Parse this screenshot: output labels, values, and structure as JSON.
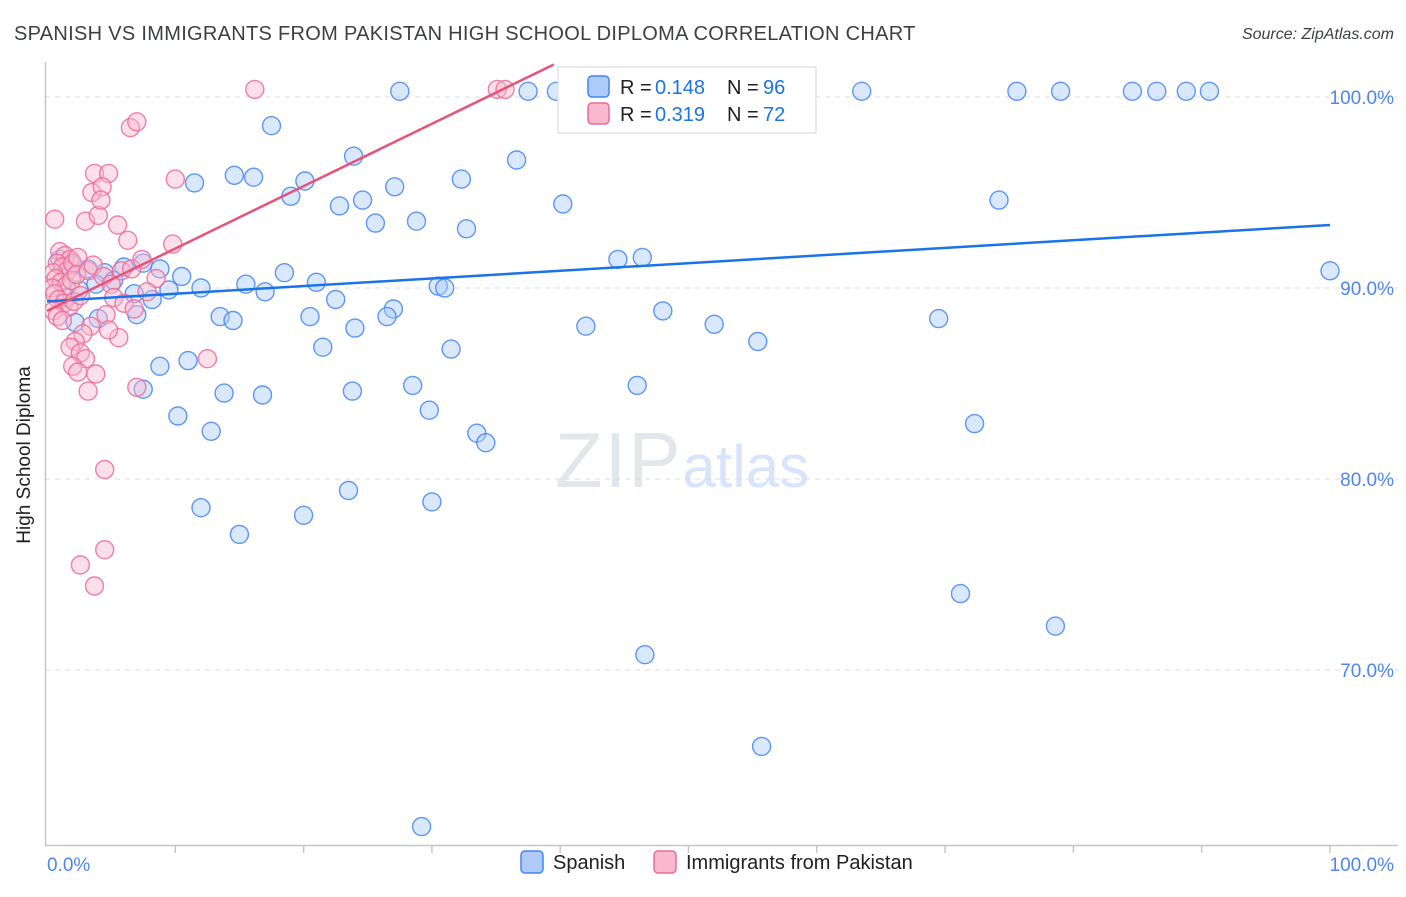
{
  "header": {
    "title": "SPANISH VS IMMIGRANTS FROM PAKISTAN HIGH SCHOOL DIPLOMA CORRELATION CHART",
    "source": "Source: ZipAtlas.com"
  },
  "axes": {
    "y_label": "High School Diploma",
    "x_tick_left": "0.0%",
    "x_tick_right": "100.0%",
    "y_tick_labels": [
      "100.0%",
      "90.0%",
      "80.0%",
      "70.0%"
    ],
    "y_tick_values": [
      100,
      90,
      80,
      70
    ]
  },
  "legend_box": {
    "rows": [
      {
        "r_label": "R =",
        "r_value": "0.148",
        "n_label": "N =",
        "n_value": "96"
      },
      {
        "r_label": "R =",
        "r_value": "0.319",
        "n_label": "N =",
        "n_value": "72"
      }
    ]
  },
  "bottom_legend": {
    "items": [
      {
        "label": "Spanish"
      },
      {
        "label": "Immigrants from Pakistan"
      }
    ]
  },
  "watermark": {
    "zip": "ZIP",
    "atlas": "atlas"
  },
  "colors": {
    "blue_stroke": "#4285F4",
    "blue_fill": "#AECBFA",
    "pink_stroke": "#EC6B96",
    "pink_fill": "#F9B8CE",
    "blue_trend": "#1A73E8",
    "pink_trend": "#E8537A",
    "grid": "#d9dce1",
    "axis": "#c3c7cd"
  },
  "chart_data": {
    "type": "scatter",
    "title": "SPANISH VS IMMIGRANTS FROM PAKISTAN HIGH SCHOOL DIPLOMA CORRELATION CHART",
    "xlabel": "",
    "ylabel": "High School Diploma",
    "xlim": [
      0,
      105
    ],
    "ylim": [
      60.8,
      101.7
    ],
    "grid": "horizontal-dashed",
    "legend_position": "top-center",
    "series": [
      {
        "name": "Spanish",
        "R": 0.148,
        "N": 96,
        "points": [
          [
            27.5,
            100.3
          ],
          [
            37.5,
            100.3
          ],
          [
            39.7,
            100.3
          ],
          [
            51.9,
            100.3
          ],
          [
            52.6,
            100.3
          ],
          [
            56.1,
            100.3
          ],
          [
            63.5,
            100.3
          ],
          [
            75.6,
            100.3
          ],
          [
            79.0,
            100.3
          ],
          [
            84.6,
            100.3
          ],
          [
            86.5,
            100.3
          ],
          [
            88.8,
            100.3
          ],
          [
            90.6,
            100.3
          ],
          [
            17.5,
            98.5
          ],
          [
            23.9,
            96.9
          ],
          [
            36.6,
            96.7
          ],
          [
            11.5,
            95.5
          ],
          [
            14.6,
            95.9
          ],
          [
            16.1,
            95.8
          ],
          [
            32.3,
            95.7
          ],
          [
            20.1,
            95.6
          ],
          [
            19.0,
            94.8
          ],
          [
            24.6,
            94.6
          ],
          [
            22.8,
            94.3
          ],
          [
            27.1,
            95.3
          ],
          [
            40.2,
            94.4
          ],
          [
            74.2,
            94.6
          ],
          [
            46.4,
            91.6
          ],
          [
            25.6,
            93.4
          ],
          [
            28.8,
            93.5
          ],
          [
            32.7,
            93.1
          ],
          [
            100.0,
            90.9
          ],
          [
            1.0,
            91.5
          ],
          [
            2.0,
            91.2
          ],
          [
            3.2,
            91.0
          ],
          [
            4.5,
            90.8
          ],
          [
            6.0,
            91.1
          ],
          [
            7.5,
            91.3
          ],
          [
            8.8,
            91.0
          ],
          [
            5.2,
            90.4
          ],
          [
            3.8,
            90.2
          ],
          [
            2.5,
            89.9
          ],
          [
            1.5,
            89.5
          ],
          [
            6.8,
            89.7
          ],
          [
            8.2,
            89.4
          ],
          [
            9.5,
            89.9
          ],
          [
            10.5,
            90.6
          ],
          [
            12.0,
            90.0
          ],
          [
            7.0,
            88.6
          ],
          [
            4.0,
            88.4
          ],
          [
            2.2,
            88.2
          ],
          [
            13.5,
            88.5
          ],
          [
            14.5,
            88.3
          ],
          [
            17.0,
            89.8
          ],
          [
            18.5,
            90.8
          ],
          [
            15.5,
            90.2
          ],
          [
            21.0,
            90.3
          ],
          [
            22.5,
            89.4
          ],
          [
            27.0,
            88.9
          ],
          [
            30.5,
            90.1
          ],
          [
            24.0,
            87.9
          ],
          [
            26.5,
            88.5
          ],
          [
            20.5,
            88.5
          ],
          [
            31.5,
            86.8
          ],
          [
            21.5,
            86.9
          ],
          [
            8.8,
            85.9
          ],
          [
            11.0,
            86.2
          ],
          [
            13.8,
            84.5
          ],
          [
            7.5,
            84.7
          ],
          [
            10.2,
            83.3
          ],
          [
            12.8,
            82.5
          ],
          [
            16.8,
            84.4
          ],
          [
            28.5,
            84.9
          ],
          [
            23.8,
            84.6
          ],
          [
            33.5,
            82.4
          ],
          [
            34.2,
            81.9
          ],
          [
            29.8,
            83.6
          ],
          [
            42.0,
            88.0
          ],
          [
            44.5,
            91.5
          ],
          [
            48.0,
            88.8
          ],
          [
            52.0,
            88.1
          ],
          [
            55.4,
            87.2
          ],
          [
            46.0,
            84.9
          ],
          [
            31.0,
            90.0
          ],
          [
            23.5,
            79.4
          ],
          [
            20.0,
            78.1
          ],
          [
            30.0,
            78.8
          ],
          [
            15.0,
            77.1
          ],
          [
            12.0,
            78.5
          ],
          [
            69.5,
            88.4
          ],
          [
            72.3,
            82.9
          ],
          [
            71.2,
            74.0
          ],
          [
            78.6,
            72.3
          ],
          [
            46.6,
            70.8
          ],
          [
            55.7,
            66.0
          ],
          [
            29.2,
            61.8
          ]
        ]
      },
      {
        "name": "Immigrants from Pakistan",
        "R": 0.319,
        "N": 72,
        "points": [
          [
            16.2,
            100.4
          ],
          [
            35.1,
            100.4
          ],
          [
            35.7,
            100.4
          ],
          [
            6.5,
            98.4
          ],
          [
            7.0,
            98.7
          ],
          [
            3.7,
            96.0
          ],
          [
            4.8,
            96.0
          ],
          [
            10.0,
            95.7
          ],
          [
            3.5,
            95.0
          ],
          [
            4.3,
            95.3
          ],
          [
            0.6,
            93.6
          ],
          [
            3.0,
            93.5
          ],
          [
            4.0,
            93.8
          ],
          [
            5.5,
            93.3
          ],
          [
            6.3,
            92.5
          ],
          [
            1.0,
            91.9
          ],
          [
            1.4,
            91.7
          ],
          [
            1.8,
            91.5
          ],
          [
            0.8,
            91.3
          ],
          [
            1.2,
            91.1
          ],
          [
            1.6,
            90.9
          ],
          [
            2.0,
            91.3
          ],
          [
            2.4,
            91.6
          ],
          [
            0.5,
            90.8
          ],
          [
            0.7,
            90.5
          ],
          [
            1.1,
            90.3
          ],
          [
            1.5,
            90.1
          ],
          [
            1.9,
            90.4
          ],
          [
            2.3,
            90.7
          ],
          [
            0.4,
            90.0
          ],
          [
            0.6,
            89.7
          ],
          [
            0.9,
            89.4
          ],
          [
            1.3,
            89.2
          ],
          [
            1.7,
            89.0
          ],
          [
            2.1,
            89.3
          ],
          [
            0.5,
            88.8
          ],
          [
            0.8,
            88.5
          ],
          [
            1.2,
            88.3
          ],
          [
            2.6,
            89.6
          ],
          [
            3.2,
            90.9
          ],
          [
            3.6,
            91.2
          ],
          [
            4.4,
            90.6
          ],
          [
            5.0,
            90.2
          ],
          [
            5.8,
            90.9
          ],
          [
            6.6,
            91.0
          ],
          [
            7.4,
            91.5
          ],
          [
            5.2,
            89.5
          ],
          [
            6.0,
            89.2
          ],
          [
            6.8,
            88.9
          ],
          [
            4.6,
            88.6
          ],
          [
            3.4,
            88.0
          ],
          [
            2.8,
            87.6
          ],
          [
            2.2,
            87.2
          ],
          [
            1.8,
            86.9
          ],
          [
            2.6,
            86.6
          ],
          [
            3.0,
            86.3
          ],
          [
            2.0,
            85.9
          ],
          [
            2.4,
            85.6
          ],
          [
            3.8,
            85.5
          ],
          [
            3.2,
            84.6
          ],
          [
            7.0,
            84.8
          ],
          [
            5.6,
            87.4
          ],
          [
            4.8,
            87.8
          ],
          [
            12.5,
            86.3
          ],
          [
            9.8,
            92.3
          ],
          [
            8.5,
            90.5
          ],
          [
            7.8,
            89.8
          ],
          [
            4.2,
            94.6
          ],
          [
            4.5,
            80.5
          ],
          [
            4.5,
            76.3
          ],
          [
            2.6,
            75.5
          ],
          [
            3.7,
            74.4
          ]
        ]
      }
    ],
    "trend_lines": [
      {
        "series": "Spanish",
        "x1": 0,
        "y1": 89.3,
        "x2": 100,
        "y2": 93.3
      },
      {
        "series": "Immigrants from Pakistan",
        "x1": 0,
        "y1": 88.8,
        "x2": 39.5,
        "y2": 101.7
      }
    ]
  }
}
